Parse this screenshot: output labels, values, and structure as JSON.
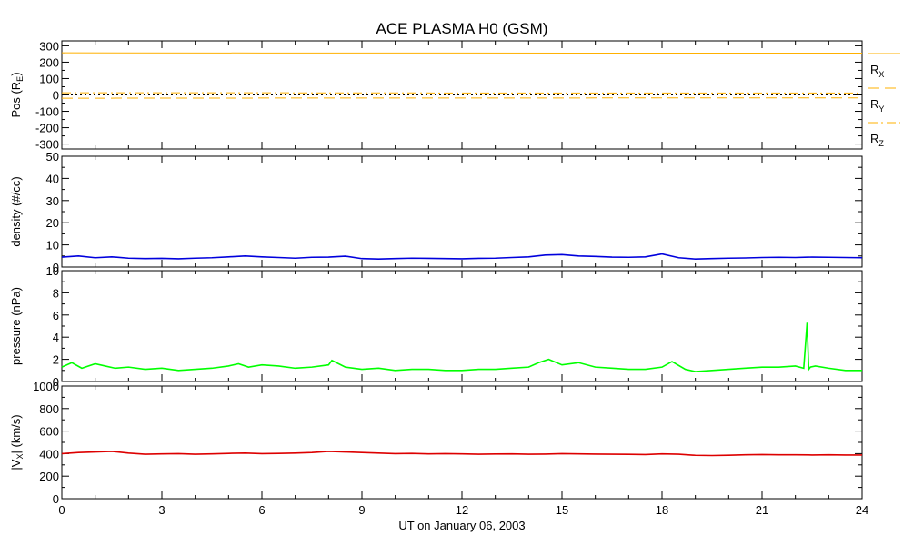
{
  "title": "ACE PLASMA H0 (GSM)",
  "xlabel": "UT on January 06, 2003",
  "colors": {
    "rx": "#ffb000",
    "density": "#0000dd",
    "pressure": "#00ff00",
    "vx": "#dd0000",
    "zero": "#000000"
  },
  "chart_data": [
    {
      "type": "line",
      "title": "",
      "ylabel": "Pos (R",
      "ylabel_sub": "E",
      "ylabel_tail": ")",
      "xlim": [
        0,
        24
      ],
      "ylim": [
        -330,
        330
      ],
      "yticks": [
        -300,
        -200,
        -100,
        0,
        100,
        200,
        300
      ],
      "legend_placement": "right",
      "series": [
        {
          "name": "R",
          "sub": "X",
          "style": "solid",
          "x": [
            0,
            6,
            12,
            18,
            24
          ],
          "y": [
            257,
            256,
            256,
            255,
            255
          ]
        },
        {
          "name": "R",
          "sub": "Y",
          "style": "dashed",
          "x": [
            0,
            6,
            12,
            18,
            24
          ],
          "y": [
            -20,
            -19,
            -19,
            -18,
            -18
          ]
        },
        {
          "name": "R",
          "sub": "Z",
          "style": "dashdot",
          "x": [
            0,
            6,
            12,
            18,
            24
          ],
          "y": [
            13,
            13,
            12,
            12,
            12
          ]
        }
      ]
    },
    {
      "type": "line",
      "title": "",
      "ylabel": "density (#/cc)",
      "xlim": [
        0,
        24
      ],
      "ylim": [
        0,
        50
      ],
      "yticks": [
        0,
        10,
        20,
        30,
        40,
        50
      ],
      "series": [
        {
          "x": [
            0,
            0.5,
            1,
            1.5,
            2,
            2.5,
            3,
            3.5,
            4,
            4.5,
            5,
            5.5,
            6,
            6.5,
            7,
            7.5,
            8,
            8.5,
            9,
            9.5,
            10,
            10.5,
            11,
            11.5,
            12,
            12.5,
            13,
            13.5,
            14,
            14.5,
            15,
            15.5,
            16,
            16.5,
            17,
            17.5,
            18,
            18.5,
            19,
            19.5,
            20,
            20.5,
            21,
            21.5,
            22,
            22.5,
            23,
            23.5,
            24
          ],
          "y": [
            4.5,
            5.0,
            4.2,
            4.6,
            4.0,
            3.8,
            3.9,
            3.7,
            4.0,
            4.2,
            4.6,
            5.0,
            4.6,
            4.3,
            4.0,
            4.4,
            4.5,
            4.9,
            3.8,
            3.6,
            3.8,
            4.0,
            3.9,
            3.8,
            3.7,
            3.9,
            4.0,
            4.3,
            4.6,
            5.4,
            5.6,
            5.0,
            4.8,
            4.5,
            4.4,
            4.6,
            5.9,
            4.2,
            3.6,
            3.8,
            4.0,
            4.1,
            4.3,
            4.4,
            4.3,
            4.5,
            4.4,
            4.3,
            4.2
          ]
        }
      ]
    },
    {
      "type": "line",
      "title": "",
      "ylabel": "pressure (nPa)",
      "xlim": [
        0,
        24
      ],
      "ylim": [
        0,
        10
      ],
      "yticks": [
        0,
        2,
        4,
        6,
        8,
        10
      ],
      "series": [
        {
          "x": [
            0,
            0.3,
            0.6,
            1,
            1.3,
            1.6,
            2,
            2.5,
            3,
            3.5,
            4,
            4.5,
            5,
            5.3,
            5.6,
            6,
            6.5,
            7,
            7.5,
            8,
            8.1,
            8.5,
            9,
            9.5,
            10,
            10.5,
            11,
            11.5,
            12,
            12.5,
            13,
            13.5,
            14,
            14.3,
            14.6,
            15,
            15.5,
            16,
            16.5,
            17,
            17.5,
            18,
            18.3,
            18.7,
            19,
            19.5,
            20,
            20.5,
            21,
            21.5,
            22,
            22.25,
            22.35,
            22.4,
            22.45,
            22.6,
            23,
            23.5,
            24
          ],
          "y": [
            1.3,
            1.7,
            1.2,
            1.6,
            1.4,
            1.2,
            1.3,
            1.1,
            1.2,
            1.0,
            1.1,
            1.2,
            1.4,
            1.6,
            1.3,
            1.5,
            1.4,
            1.2,
            1.3,
            1.5,
            1.9,
            1.3,
            1.1,
            1.2,
            1.0,
            1.1,
            1.1,
            1.0,
            1.0,
            1.1,
            1.1,
            1.2,
            1.3,
            1.7,
            2.0,
            1.5,
            1.7,
            1.3,
            1.2,
            1.1,
            1.1,
            1.3,
            1.8,
            1.1,
            0.9,
            1.0,
            1.1,
            1.2,
            1.3,
            1.3,
            1.4,
            1.2,
            5.3,
            1.1,
            1.3,
            1.4,
            1.2,
            1.0,
            1.0
          ]
        }
      ]
    },
    {
      "type": "line",
      "title": "",
      "ylabel": "|V",
      "ylabel_sub": "X",
      "ylabel_tail": "| (km/s)",
      "xlim": [
        0,
        24
      ],
      "ylim": [
        0,
        1000
      ],
      "yticks": [
        0,
        200,
        400,
        600,
        800,
        1000
      ],
      "xticks": [
        0,
        3,
        6,
        9,
        12,
        15,
        18,
        21,
        24
      ],
      "series": [
        {
          "x": [
            0,
            0.5,
            1,
            1.5,
            2,
            2.5,
            3,
            3.5,
            4,
            4.5,
            5,
            5.5,
            6,
            6.5,
            7,
            7.5,
            8,
            8.5,
            9,
            9.5,
            10,
            10.5,
            11,
            11.5,
            12,
            12.5,
            13,
            13.5,
            14,
            14.5,
            15,
            15.5,
            16,
            16.5,
            17,
            17.5,
            18,
            18.5,
            19,
            19.5,
            20,
            20.5,
            21,
            21.5,
            22,
            22.5,
            23,
            23.5,
            24
          ],
          "y": [
            400,
            410,
            415,
            420,
            405,
            395,
            398,
            400,
            395,
            398,
            402,
            405,
            400,
            402,
            405,
            410,
            420,
            415,
            410,
            405,
            400,
            402,
            398,
            400,
            398,
            395,
            397,
            398,
            395,
            396,
            400,
            398,
            396,
            395,
            394,
            392,
            398,
            395,
            385,
            383,
            386,
            390,
            392,
            390,
            390,
            388,
            390,
            388,
            388
          ]
        }
      ]
    }
  ]
}
